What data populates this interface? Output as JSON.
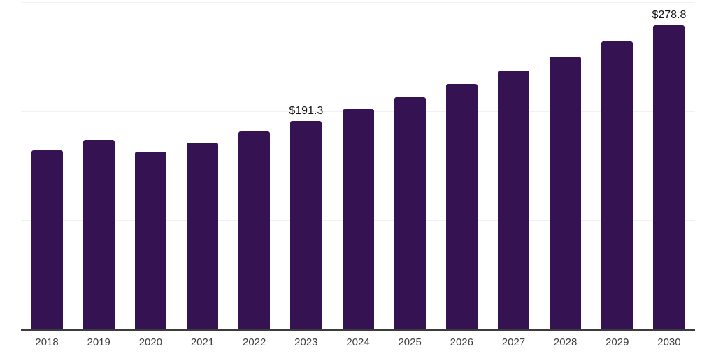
{
  "chart_data": {
    "type": "bar",
    "title": "",
    "xlabel": "",
    "ylabel": "",
    "categories": [
      "2018",
      "2019",
      "2020",
      "2021",
      "2022",
      "2023",
      "2024",
      "2025",
      "2026",
      "2027",
      "2028",
      "2029",
      "2030"
    ],
    "values": [
      164.2,
      174.0,
      162.5,
      171.0,
      181.3,
      191.3,
      201.9,
      213.0,
      224.8,
      237.2,
      250.3,
      264.2,
      278.8
    ],
    "annotations": [
      {
        "category": "2023",
        "text": "$191.3"
      },
      {
        "category": "2030",
        "text": "$278.8"
      }
    ],
    "ylim": [
      0,
      300
    ],
    "grid_step": 50,
    "grid_visible": true,
    "y_tick_labels_visible": false,
    "legend_position": "none",
    "colors": {
      "bar": "#351353",
      "grid": "#f1f1f1",
      "axis": "#3c3c3c",
      "annotation_text": "#141414",
      "x_tick_text": "#3e3e3e",
      "background": "#ffffff"
    }
  }
}
